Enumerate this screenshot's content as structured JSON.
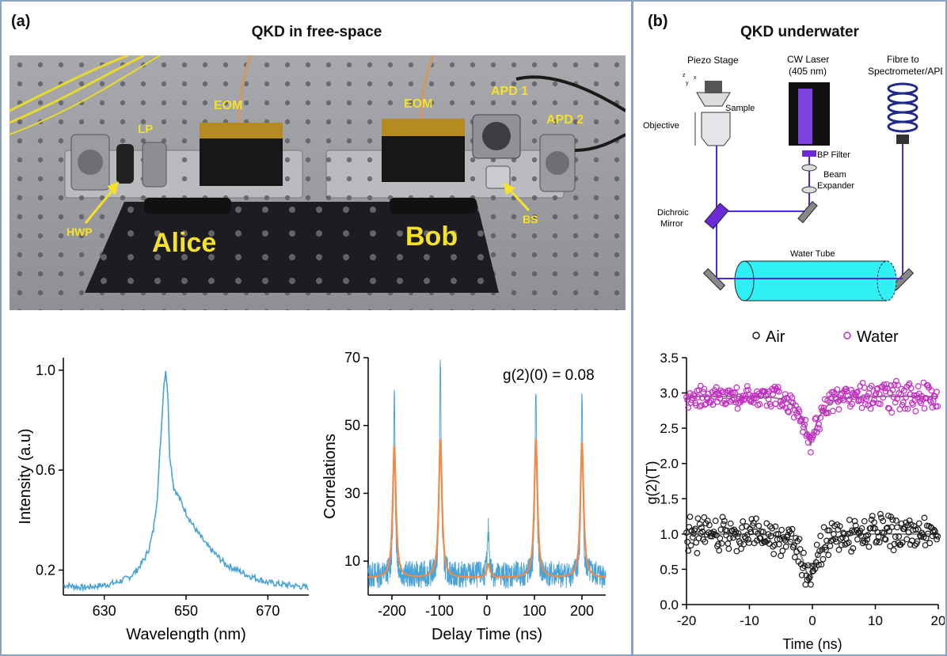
{
  "panel_a": {
    "label": "(a)",
    "title": "QKD in free-space",
    "photo_labels": {
      "eom_left": "EOM",
      "eom_right": "EOM",
      "lp": "LP",
      "hwp": "HWP",
      "apd1": "APD 1",
      "apd2": "APD 2",
      "bs": "BS",
      "alice": "Alice",
      "bob": "Bob"
    }
  },
  "panel_b": {
    "label": "(b)",
    "title": "QKD underwater",
    "schematic_labels": {
      "piezo": "Piezo Stage",
      "sample": "Sample",
      "objective": "Objective",
      "laser_line1": "CW Laser",
      "laser_line2": "(405 nm)",
      "fibre_line1": "Fibre to",
      "fibre_line2": "Spectrometer/APD",
      "bp_filter": "BP Filter",
      "beam_line1": "Beam",
      "beam_line2": "Expander",
      "dichroic_line1": "Dichroic",
      "dichroic_line2": "Mirror",
      "water_tube": "Water Tube",
      "axis_z": "z",
      "axis_x": "x",
      "axis_y": "y"
    }
  },
  "colors": {
    "spectrum": "#4aa3d8",
    "corr_raw": "#4aa3d8",
    "corr_fit": "#ee8a4a",
    "water": "#c22bc2",
    "air": "#1a1a1a",
    "fit_gray": "#8c8c8c",
    "laser": "#6a2bd6",
    "tube": "#2ef0f5",
    "label_yellow": "#f5e12a",
    "frame": "#8aa3c4"
  },
  "chart_data": [
    {
      "type": "line",
      "xlabel": "Wavelength (nm)",
      "ylabel": "Intensity (a.u)",
      "xlim": [
        620,
        680
      ],
      "ylim": [
        0.1,
        1.05
      ],
      "xticks": [
        630,
        650,
        670
      ],
      "yticks": [
        0.2,
        0.6,
        1.0
      ],
      "ytick_labels": [
        "0.2",
        "0.6",
        "1.0"
      ],
      "series": [
        {
          "x": [
            620,
            625,
            630,
            633,
            636,
            638,
            640,
            641,
            642,
            643,
            644,
            644.5,
            645,
            645.5,
            646,
            647,
            648,
            650,
            652,
            655,
            658,
            660,
            665,
            670,
            675,
            680
          ],
          "y": [
            0.14,
            0.13,
            0.14,
            0.15,
            0.17,
            0.2,
            0.25,
            0.29,
            0.36,
            0.5,
            0.78,
            0.93,
            1.0,
            0.92,
            0.66,
            0.53,
            0.5,
            0.43,
            0.37,
            0.3,
            0.25,
            0.22,
            0.18,
            0.15,
            0.14,
            0.13
          ]
        }
      ]
    },
    {
      "type": "line",
      "xlabel": "Delay Time (ns)",
      "ylabel": "Correlations",
      "annotation": "g(2)(0) = 0.08",
      "xlim": [
        -250,
        250
      ],
      "ylim": [
        0,
        70
      ],
      "xticks": [
        -200,
        -100,
        0,
        100,
        200
      ],
      "yticks": [
        10,
        30,
        50,
        70
      ],
      "series": [
        {
          "name": "raw",
          "baseline": 5,
          "noise": 4,
          "peaks": [
            {
              "x": -195,
              "y": 57
            },
            {
              "x": -98,
              "y": 68
            },
            {
              "x": 3,
              "y": 18
            },
            {
              "x": 103,
              "y": 60
            },
            {
              "x": 200,
              "y": 59
            }
          ]
        },
        {
          "name": "fit",
          "baseline": 5,
          "peaks": [
            {
              "x": -195,
              "y": 44
            },
            {
              "x": -98,
              "y": 46
            },
            {
              "x": 3,
              "y": 9
            },
            {
              "x": 103,
              "y": 46
            },
            {
              "x": 200,
              "y": 45
            }
          ]
        }
      ]
    },
    {
      "type": "scatter",
      "xlabel": "Time (ns)",
      "ylabel": "g(2)(T)",
      "xlim": [
        -20,
        20
      ],
      "ylim": [
        0,
        3.5
      ],
      "xticks": [
        -20,
        -10,
        0,
        10,
        20
      ],
      "yticks": [
        0.0,
        0.5,
        1.0,
        1.5,
        2.0,
        2.5,
        3.0,
        3.5
      ],
      "ytick_labels": [
        "0.0",
        "0.5",
        "1.0",
        "1.5",
        "2.0",
        "2.5",
        "3.0",
        "3.5"
      ],
      "legend_position": "top",
      "series": [
        {
          "name": "Air",
          "baseline": 1.0,
          "dip_min": 0.3,
          "dip_center": -0.5,
          "scatter": 0.18
        },
        {
          "name": "Water",
          "baseline": 2.95,
          "dip_min": 2.25,
          "dip_center": -0.3,
          "scatter": 0.15
        }
      ]
    }
  ]
}
